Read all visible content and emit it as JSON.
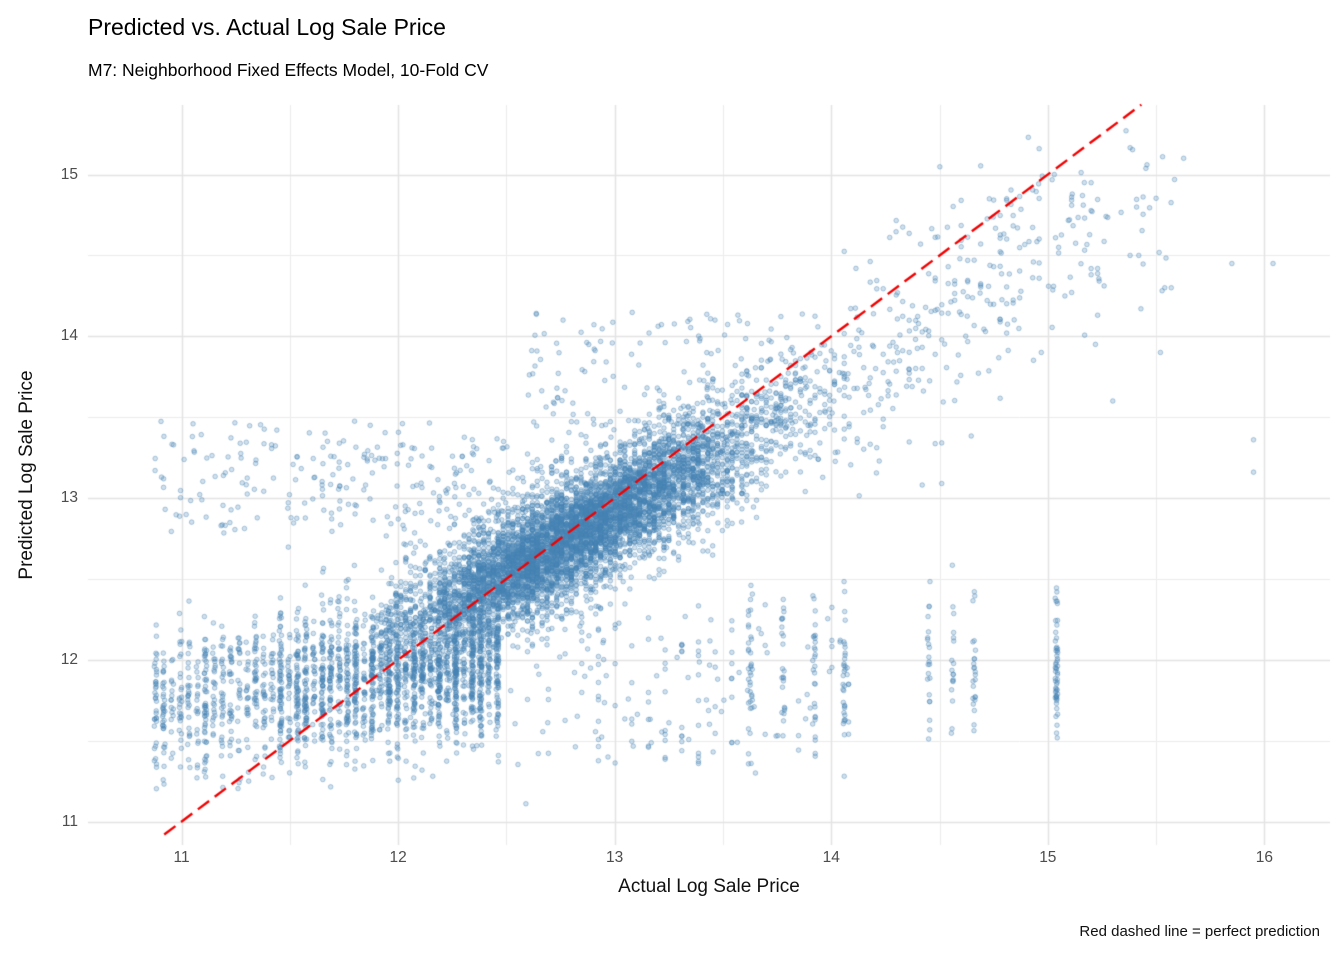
{
  "chart_data": {
    "type": "scatter",
    "title": "Predicted vs. Actual Log Sale Price",
    "subtitle": "M7: Neighborhood Fixed Effects Model, 10-Fold CV",
    "xlabel": "Actual Log Sale Price",
    "ylabel": "Predicted Log Sale Price",
    "caption": "Red dashed line = perfect prediction",
    "x_ticks": [
      11,
      12,
      13,
      14,
      15,
      16
    ],
    "y_ticks": [
      11,
      12,
      13,
      14,
      15
    ],
    "x_domain": [
      10.568,
      16.303
    ],
    "y_domain": [
      10.855,
      15.43
    ],
    "grid": {
      "major_color": "#E3E3E3",
      "minor_color": "#ECECEC",
      "background": "#FFFFFF"
    },
    "identity_line": {
      "x1": 10.92,
      "y1": 10.92,
      "x2": 15.432,
      "y2": 15.432,
      "color": "#F20000",
      "dash": [
        14,
        7
      ],
      "width": 2.4,
      "meaning": "perfect prediction y = x"
    },
    "point_style": {
      "color": "#4682B4",
      "fill_alpha": 0.25,
      "stroke_alpha": 0.45,
      "radius": 2.3
    },
    "generator": {
      "seed": 1337,
      "clusters": [
        {
          "type": "linear",
          "name": "main-cloud",
          "count": 5000,
          "x_mean": 12.82,
          "x_sd": 0.5,
          "x_min": 11.9,
          "x_max": 14.55,
          "snap_step": 0.0225,
          "snap_prob": 0.85,
          "slope": 0.73,
          "intercept": 3.42,
          "y_sd": 0.205,
          "y_min": 11.15,
          "y_max": 15.05
        },
        {
          "type": "linear",
          "name": "dense-core",
          "count": 1500,
          "x_mean": 12.75,
          "x_sd": 0.32,
          "x_min": 12.2,
          "x_max": 13.45,
          "snap_step": 0.0225,
          "snap_prob": 0.85,
          "slope": 0.73,
          "intercept": 3.42,
          "y_sd": 0.13,
          "y_min": 11.6,
          "y_max": 13.9
        },
        {
          "type": "stripes",
          "name": "low-price-band",
          "count": 2200,
          "x_start": 10.88,
          "x_end": 12.46,
          "x_step": 0.0385,
          "x_jitter": 0.006,
          "y_mean": 11.86,
          "y_slope": 0.15,
          "y_sd": 0.23,
          "y_min": 11.2,
          "y_max": 12.8,
          "tail_up_prob": 0.04,
          "tail_up_max": 13.4
        },
        {
          "type": "box",
          "name": "left-over-predictions",
          "count": 130,
          "x_min": 10.9,
          "x_max": 12.55,
          "y_min": 12.75,
          "y_max": 13.5
        },
        {
          "type": "box",
          "name": "mid-under-predictions",
          "count": 230,
          "x_min": 12.35,
          "x_max": 14.1,
          "y_min": 11.35,
          "y_max": 12.35,
          "snap_step": 0.077,
          "snap_prob": 0.6
        },
        {
          "type": "box",
          "name": "mid-over-predictions",
          "count": 150,
          "x_min": 12.6,
          "x_max": 13.9,
          "y_min": 13.4,
          "y_max": 14.15
        },
        {
          "type": "xlist",
          "name": "right-under-stripes",
          "x_values": [
            13.63,
            13.78,
            13.92,
            14.06,
            14.45,
            14.56,
            14.66,
            15.04
          ],
          "counts": [
            22,
            18,
            16,
            30,
            22,
            18,
            24,
            55
          ],
          "x_jitter": 0.006,
          "y_mean": 11.95,
          "y_sd": 0.27,
          "y_min": 11.5,
          "y_max": 12.65
        },
        {
          "type": "linear",
          "name": "high-price-spread",
          "count": 300,
          "x_mean": 14.55,
          "x_sd": 0.5,
          "x_min": 13.85,
          "x_max": 15.65,
          "snap_step": 0.03,
          "snap_prob": 0.5,
          "slope": 0.85,
          "intercept": 1.8,
          "y_sd": 0.38,
          "y_min": 12.9,
          "y_max": 15.28
        },
        {
          "type": "points",
          "name": "notable-outliers",
          "pts": [
            [
              14.91,
              15.23
            ],
            [
              15.38,
              14.5
            ],
            [
              15.42,
              14.5
            ],
            [
              15.85,
              14.45
            ],
            [
              16.04,
              14.45
            ],
            [
              15.54,
              14.3
            ],
            [
              15.57,
              14.3
            ],
            [
              15.43,
              14.17
            ],
            [
              15.95,
              13.36
            ],
            [
              15.95,
              13.16
            ],
            [
              15.52,
              13.9
            ],
            [
              15.1,
              14.72
            ],
            [
              15.16,
              14.87
            ],
            [
              14.73,
              14.85
            ],
            [
              15.03,
              15.0
            ],
            [
              14.86,
              14.67
            ],
            [
              15.05,
              14.55
            ],
            [
              14.97,
              13.9
            ],
            [
              15.22,
              13.95
            ],
            [
              15.3,
              13.6
            ],
            [
              12.59,
              11.11
            ],
            [
              11.19,
              11.28
            ],
            [
              11.31,
              11.25
            ],
            [
              12.16,
              11.28
            ],
            [
              13.65,
              11.3
            ],
            [
              14.06,
              11.28
            ],
            [
              11.05,
              13.38
            ],
            [
              11.44,
              13.42
            ],
            [
              12.02,
              13.46
            ]
          ]
        }
      ]
    }
  }
}
